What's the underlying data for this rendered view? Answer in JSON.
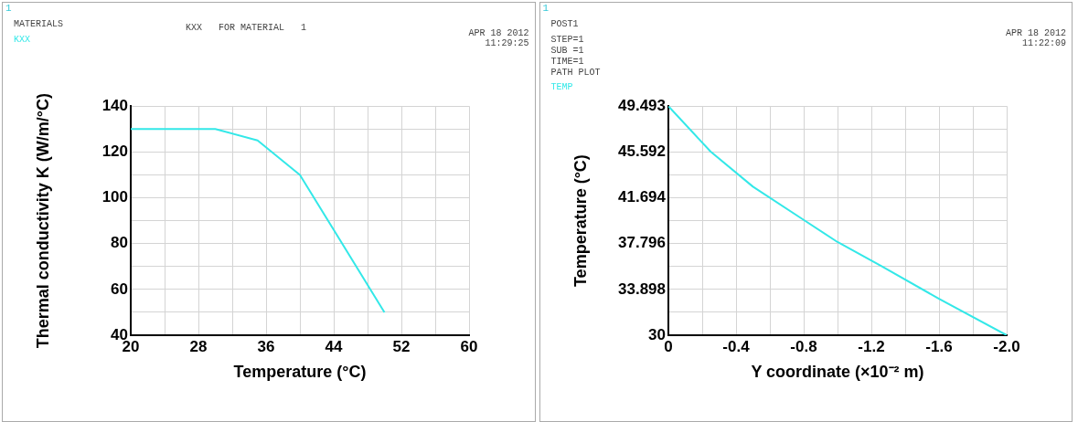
{
  "chart_data": [
    {
      "type": "line",
      "title": "KXX   FOR MATERIAL   1",
      "annotations": [
        "1",
        "MATERIALS",
        "APR 18 2012",
        "11:29:25"
      ],
      "xlabel": "Temperature (°C)",
      "ylabel": "Thermal conductivity K (W/m/°C)",
      "series": [
        {
          "name": "KXX",
          "color": "#33e8e8",
          "x": [
            20,
            30,
            35,
            40,
            50
          ],
          "values": [
            130,
            130,
            125,
            110,
            50
          ]
        }
      ],
      "xlim": [
        20,
        60
      ],
      "xticks": [
        20,
        {
          "value": 24,
          "label": null
        },
        28,
        {
          "value": 32,
          "label": null
        },
        36,
        {
          "value": 40,
          "label": null
        },
        44,
        {
          "value": 48,
          "label": null
        },
        52,
        {
          "value": 56,
          "label": null
        },
        60
      ],
      "ylim": [
        40,
        140
      ],
      "yticks": [
        40,
        {
          "value": 50,
          "label": null
        },
        60,
        {
          "value": 70,
          "label": null
        },
        80,
        {
          "value": 90,
          "label": null
        },
        100,
        {
          "value": 110,
          "label": null
        },
        120,
        {
          "value": 130,
          "label": null
        },
        140
      ],
      "grid": true,
      "legend": "top left",
      "marker": "none",
      "line_style": "solid"
    },
    {
      "type": "line",
      "annotations": [
        "1",
        "POST1",
        "STEP=1",
        "SUB =1",
        "TIME=1",
        "PATH PLOT",
        "APR 18 2012",
        "11:22:09"
      ],
      "xlabel": "Y coordinate (×10⁻² m)",
      "ylabel": "Temperature (°C)",
      "series": [
        {
          "name": "TEMP",
          "color": "#33e8e8",
          "x": [
            0,
            -0.25,
            -0.5,
            -0.8,
            -1.0,
            -1.26,
            -1.6,
            -2.0
          ],
          "values": [
            49.493,
            45.62,
            42.64,
            39.81,
            37.93,
            35.87,
            33.1,
            30
          ]
        }
      ],
      "xlim": [
        0,
        -2.0
      ],
      "xticks": [
        0,
        {
          "value": -0.2,
          "label": null
        },
        -0.4,
        {
          "value": -0.6,
          "label": null
        },
        -0.8,
        {
          "value": -1.0,
          "label": null
        },
        -1.2,
        {
          "value": -1.4,
          "label": null
        },
        -1.6,
        {
          "value": -1.8,
          "label": null
        },
        {
          "value": -2.0,
          "label": "-2.0"
        }
      ],
      "ylim": [
        30,
        49.493
      ],
      "yticks": [
        30,
        {
          "value": 31.949,
          "label": null
        },
        33.898,
        {
          "value": 35.847,
          "label": null
        },
        37.796,
        {
          "value": 39.745,
          "label": null
        },
        41.694,
        {
          "value": 43.643,
          "label": null
        },
        45.592,
        {
          "value": 47.5425,
          "label": null
        },
        49.493
      ],
      "grid": true,
      "legend": "top left",
      "marker": "none",
      "line_style": "solid"
    }
  ]
}
